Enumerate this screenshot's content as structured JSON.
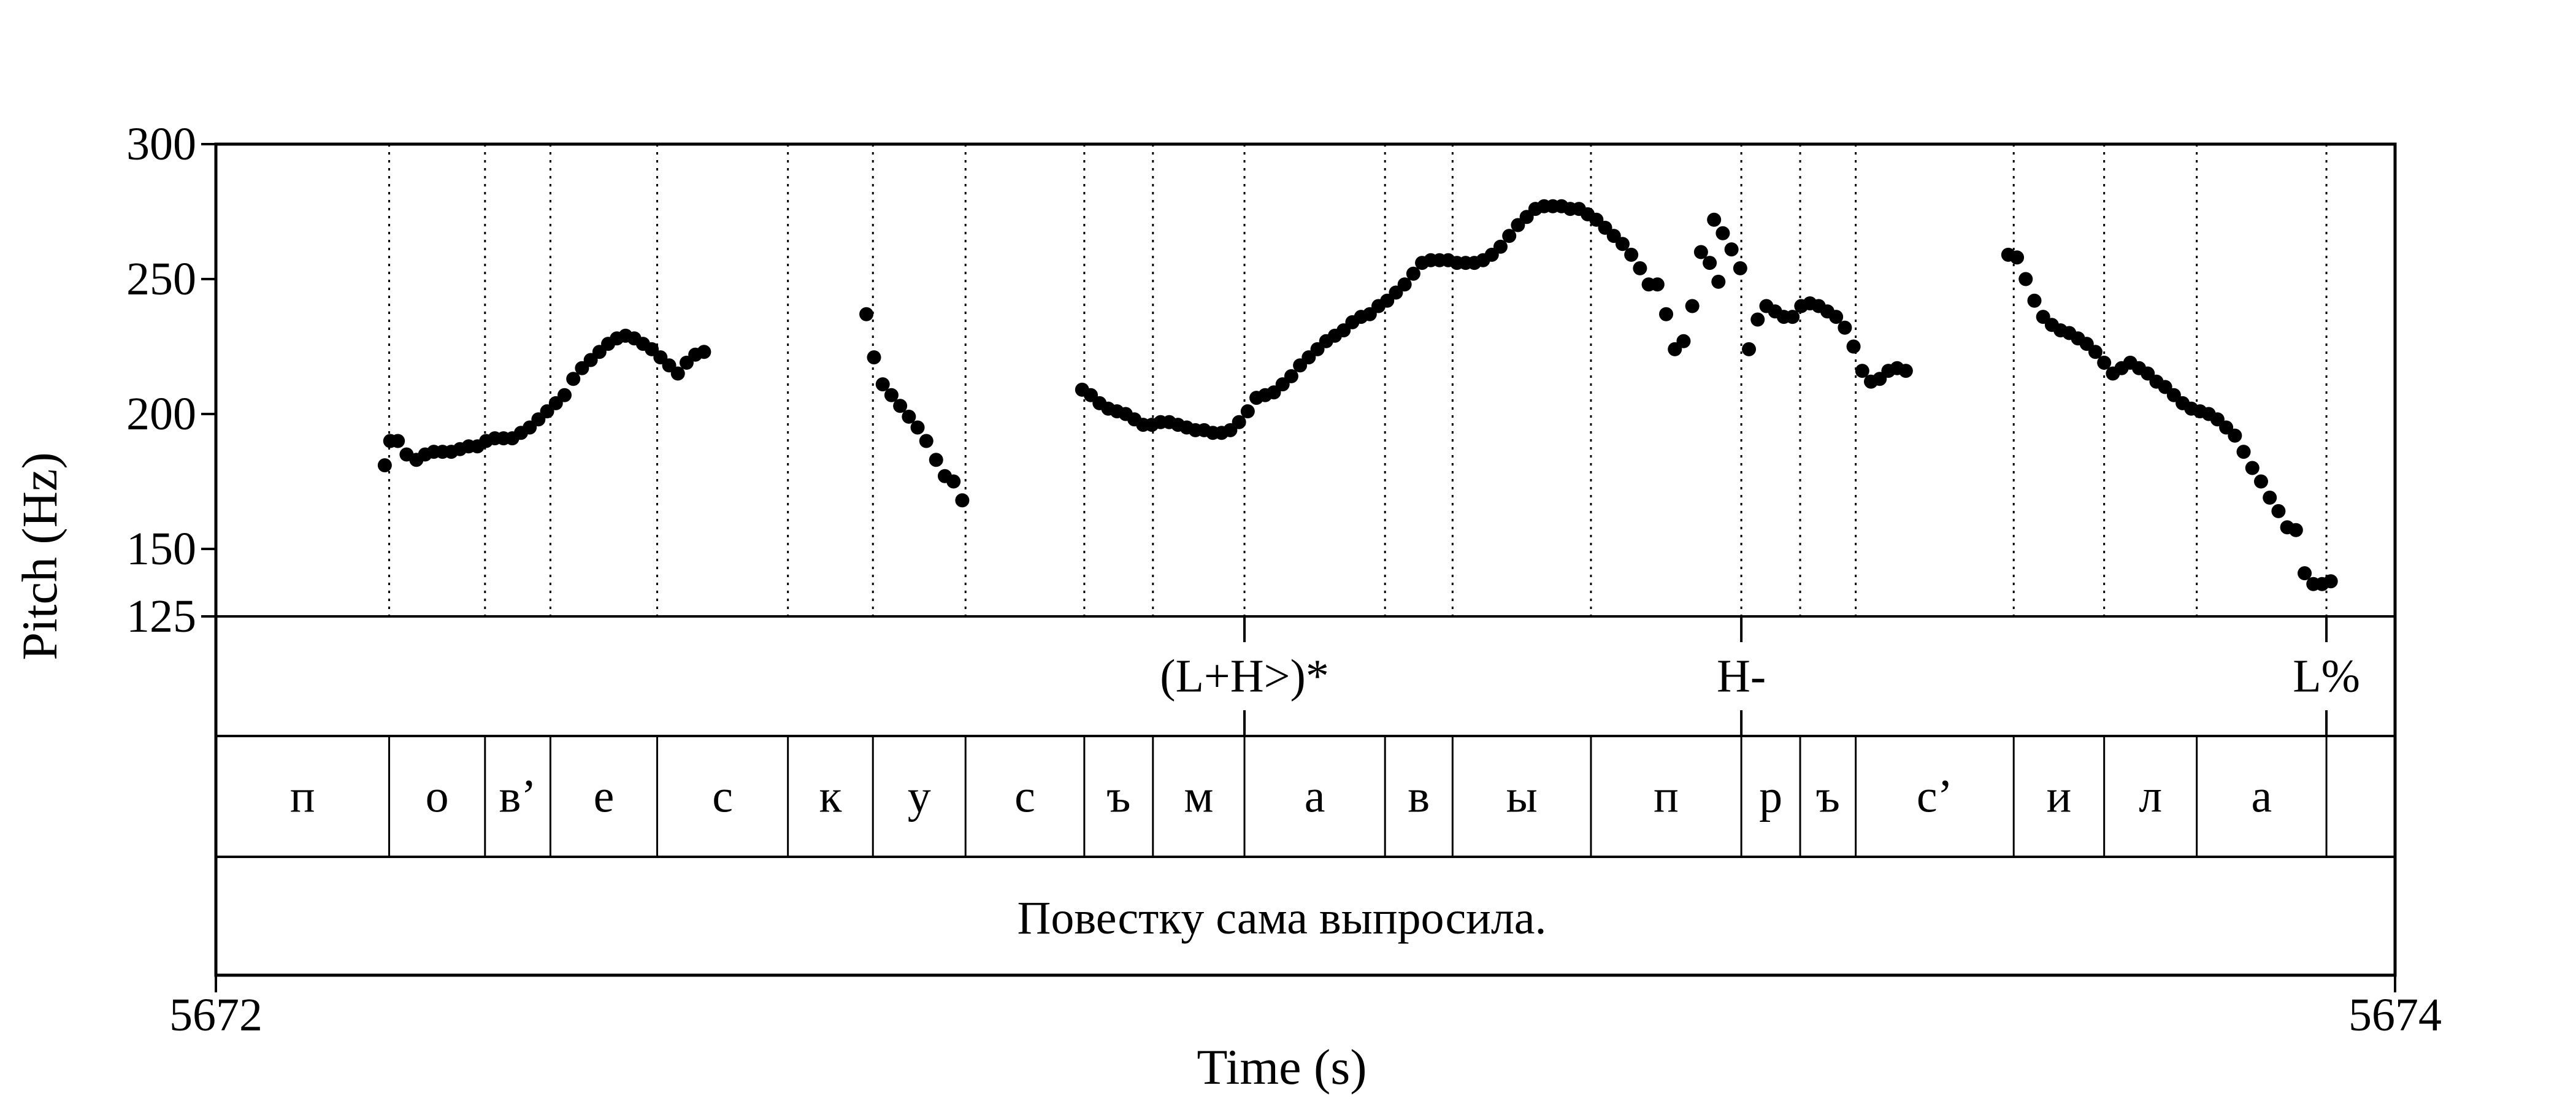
{
  "chart_data": {
    "type": "scatter",
    "title": "",
    "xlabel": "Time (s)",
    "ylabel": "Pitch (Hz)",
    "xlim": [
      5672,
      5674
    ],
    "ylim": [
      125,
      300
    ],
    "x_ticks": [
      "5672",
      "5674"
    ],
    "y_ticks": [
      {
        "value": 300,
        "label": "300"
      },
      {
        "value": 250,
        "label": "250"
      },
      {
        "value": 200,
        "label": "200"
      },
      {
        "value": 150,
        "label": "150"
      },
      {
        "value": 125,
        "label": "125"
      }
    ],
    "segment_boundaries": [
      5672.159,
      5672.247,
      5672.307,
      5672.405,
      5672.525,
      5672.603,
      5672.688,
      5672.797,
      5672.86,
      5672.944,
      5673.073,
      5673.135,
      5673.262,
      5673.4,
      5673.454,
      5673.505,
      5673.65,
      5673.733,
      5673.818,
      5673.937
    ],
    "series": [
      {
        "points": [
          [
            5672.155,
            181
          ],
          [
            5672.16,
            190
          ],
          [
            5672.167,
            190
          ],
          [
            5672.175,
            185
          ],
          [
            5672.184,
            183
          ],
          [
            5672.192,
            185
          ],
          [
            5672.2,
            186
          ],
          [
            5672.208,
            186
          ],
          [
            5672.216,
            186
          ],
          [
            5672.224,
            187
          ],
          [
            5672.232,
            188
          ],
          [
            5672.24,
            188
          ],
          [
            5672.248,
            190
          ],
          [
            5672.256,
            191
          ],
          [
            5672.264,
            191
          ],
          [
            5672.272,
            191
          ],
          [
            5672.28,
            193
          ],
          [
            5672.288,
            195
          ],
          [
            5672.296,
            198
          ],
          [
            5672.304,
            201
          ],
          [
            5672.312,
            204
          ],
          [
            5672.32,
            207
          ],
          [
            5672.328,
            213
          ],
          [
            5672.336,
            217
          ],
          [
            5672.344,
            220
          ],
          [
            5672.352,
            223
          ],
          [
            5672.36,
            226
          ],
          [
            5672.368,
            228
          ],
          [
            5672.376,
            229
          ],
          [
            5672.384,
            228
          ],
          [
            5672.392,
            226
          ],
          [
            5672.4,
            224
          ],
          [
            5672.408,
            221
          ],
          [
            5672.416,
            218
          ],
          [
            5672.424,
            215
          ],
          [
            5672.432,
            219
          ],
          [
            5672.44,
            222
          ],
          [
            5672.448,
            223
          ]
        ]
      },
      {
        "points": [
          [
            5672.597,
            237
          ],
          [
            5672.604,
            221
          ],
          [
            5672.612,
            211
          ],
          [
            5672.62,
            207
          ],
          [
            5672.628,
            203
          ],
          [
            5672.636,
            199
          ],
          [
            5672.644,
            195
          ],
          [
            5672.652,
            190
          ],
          [
            5672.661,
            183
          ],
          [
            5672.669,
            177
          ],
          [
            5672.677,
            175
          ],
          [
            5672.685,
            168
          ]
        ]
      },
      {
        "points": [
          [
            5672.795,
            209
          ],
          [
            5672.803,
            207
          ],
          [
            5672.811,
            204
          ],
          [
            5672.819,
            202
          ],
          [
            5672.827,
            201
          ],
          [
            5672.835,
            200
          ],
          [
            5672.843,
            198
          ],
          [
            5672.851,
            196
          ],
          [
            5672.859,
            196
          ],
          [
            5672.867,
            197
          ],
          [
            5672.875,
            197
          ],
          [
            5672.883,
            196
          ],
          [
            5672.891,
            195
          ],
          [
            5672.899,
            194
          ],
          [
            5672.907,
            194
          ],
          [
            5672.915,
            193
          ],
          [
            5672.923,
            193
          ],
          [
            5672.931,
            194
          ],
          [
            5672.939,
            197
          ],
          [
            5672.947,
            201
          ],
          [
            5672.955,
            206
          ],
          [
            5672.963,
            207
          ],
          [
            5672.971,
            208
          ],
          [
            5672.979,
            211
          ],
          [
            5672.987,
            214
          ],
          [
            5672.995,
            218
          ],
          [
            5673.003,
            221
          ],
          [
            5673.011,
            224
          ],
          [
            5673.019,
            227
          ],
          [
            5673.027,
            229
          ],
          [
            5673.035,
            231
          ],
          [
            5673.043,
            234
          ],
          [
            5673.051,
            236
          ],
          [
            5673.059,
            237
          ],
          [
            5673.067,
            240
          ],
          [
            5673.075,
            242
          ],
          [
            5673.083,
            245
          ],
          [
            5673.091,
            248
          ],
          [
            5673.099,
            252
          ],
          [
            5673.107,
            256
          ],
          [
            5673.115,
            257
          ],
          [
            5673.123,
            257
          ],
          [
            5673.131,
            257
          ],
          [
            5673.139,
            256
          ],
          [
            5673.147,
            256
          ],
          [
            5673.155,
            256
          ],
          [
            5673.163,
            257
          ],
          [
            5673.171,
            259
          ],
          [
            5673.179,
            262
          ],
          [
            5673.187,
            266
          ],
          [
            5673.195,
            270
          ],
          [
            5673.203,
            273
          ],
          [
            5673.211,
            276
          ],
          [
            5673.219,
            277
          ],
          [
            5673.227,
            277
          ],
          [
            5673.235,
            277
          ],
          [
            5673.243,
            276
          ],
          [
            5673.251,
            276
          ],
          [
            5673.259,
            274
          ],
          [
            5673.267,
            272
          ],
          [
            5673.275,
            269
          ],
          [
            5673.283,
            266
          ],
          [
            5673.291,
            263
          ],
          [
            5673.299,
            259
          ],
          [
            5673.307,
            254
          ],
          [
            5673.315,
            248
          ],
          [
            5673.323,
            248
          ],
          [
            5673.331,
            237
          ],
          [
            5673.339,
            224
          ],
          [
            5673.347,
            227
          ],
          [
            5673.355,
            240
          ],
          [
            5673.363,
            260
          ],
          [
            5673.371,
            256
          ],
          [
            5673.379,
            249
          ]
        ]
      },
      {
        "points": [
          [
            5673.375,
            272
          ],
          [
            5673.383,
            267
          ],
          [
            5673.391,
            261
          ],
          [
            5673.399,
            254
          ],
          [
            5673.407,
            224
          ],
          [
            5673.415,
            235
          ],
          [
            5673.423,
            240
          ],
          [
            5673.431,
            238
          ],
          [
            5673.439,
            236
          ],
          [
            5673.447,
            236
          ],
          [
            5673.455,
            240
          ],
          [
            5673.463,
            241
          ],
          [
            5673.471,
            240
          ],
          [
            5673.479,
            238
          ],
          [
            5673.487,
            236
          ],
          [
            5673.495,
            232
          ],
          [
            5673.503,
            225
          ],
          [
            5673.511,
            216
          ],
          [
            5673.519,
            212
          ],
          [
            5673.527,
            213
          ],
          [
            5673.535,
            216
          ],
          [
            5673.543,
            217
          ],
          [
            5673.551,
            216
          ]
        ]
      },
      {
        "points": [
          [
            5673.645,
            259
          ],
          [
            5673.653,
            258
          ],
          [
            5673.661,
            250
          ],
          [
            5673.669,
            242
          ],
          [
            5673.677,
            236
          ],
          [
            5673.685,
            233
          ],
          [
            5673.693,
            231
          ],
          [
            5673.701,
            230
          ],
          [
            5673.709,
            228
          ],
          [
            5673.717,
            226
          ],
          [
            5673.725,
            223
          ],
          [
            5673.733,
            219
          ],
          [
            5673.741,
            215
          ],
          [
            5673.749,
            217
          ],
          [
            5673.757,
            219
          ],
          [
            5673.765,
            217
          ],
          [
            5673.773,
            215
          ],
          [
            5673.781,
            212
          ],
          [
            5673.789,
            210
          ],
          [
            5673.797,
            207
          ],
          [
            5673.805,
            204
          ],
          [
            5673.813,
            202
          ],
          [
            5673.821,
            201
          ],
          [
            5673.829,
            200
          ],
          [
            5673.837,
            198
          ],
          [
            5673.845,
            195
          ],
          [
            5673.853,
            192
          ],
          [
            5673.861,
            186
          ],
          [
            5673.869,
            180
          ],
          [
            5673.877,
            175
          ],
          [
            5673.885,
            169
          ],
          [
            5673.893,
            164
          ],
          [
            5673.901,
            158
          ],
          [
            5673.909,
            157
          ],
          [
            5673.917,
            141
          ],
          [
            5673.925,
            137
          ],
          [
            5673.933,
            137
          ],
          [
            5673.941,
            138
          ]
        ]
      }
    ],
    "tones": [
      {
        "label": "(L+H>)*",
        "time": 5672.944
      },
      {
        "label": "H-",
        "time": 5673.4
      },
      {
        "label": "L%",
        "time": 5673.937
      }
    ],
    "segments": [
      {
        "label": "п",
        "start": 5672.0,
        "end": 5672.159
      },
      {
        "label": "о",
        "start": 5672.159,
        "end": 5672.247
      },
      {
        "label": "в’",
        "start": 5672.247,
        "end": 5672.307
      },
      {
        "label": "е",
        "start": 5672.307,
        "end": 5672.405
      },
      {
        "label": "с",
        "start": 5672.405,
        "end": 5672.525
      },
      {
        "label": "к",
        "start": 5672.525,
        "end": 5672.603
      },
      {
        "label": "у",
        "start": 5672.603,
        "end": 5672.688
      },
      {
        "label": "с",
        "start": 5672.688,
        "end": 5672.797
      },
      {
        "label": "ъ",
        "start": 5672.797,
        "end": 5672.86
      },
      {
        "label": "м",
        "start": 5672.86,
        "end": 5672.944
      },
      {
        "label": "а",
        "start": 5672.944,
        "end": 5673.073
      },
      {
        "label": "в",
        "start": 5673.073,
        "end": 5673.135
      },
      {
        "label": "ы",
        "start": 5673.135,
        "end": 5673.262
      },
      {
        "label": "п",
        "start": 5673.262,
        "end": 5673.4
      },
      {
        "label": "р",
        "start": 5673.4,
        "end": 5673.454
      },
      {
        "label": "ъ",
        "start": 5673.454,
        "end": 5673.505
      },
      {
        "label": "с’",
        "start": 5673.505,
        "end": 5673.65
      },
      {
        "label": "и",
        "start": 5673.65,
        "end": 5673.733
      },
      {
        "label": "л",
        "start": 5673.733,
        "end": 5673.818
      },
      {
        "label": "а",
        "start": 5673.818,
        "end": 5673.937
      }
    ],
    "sentence": "Повестку сама выпросила."
  }
}
